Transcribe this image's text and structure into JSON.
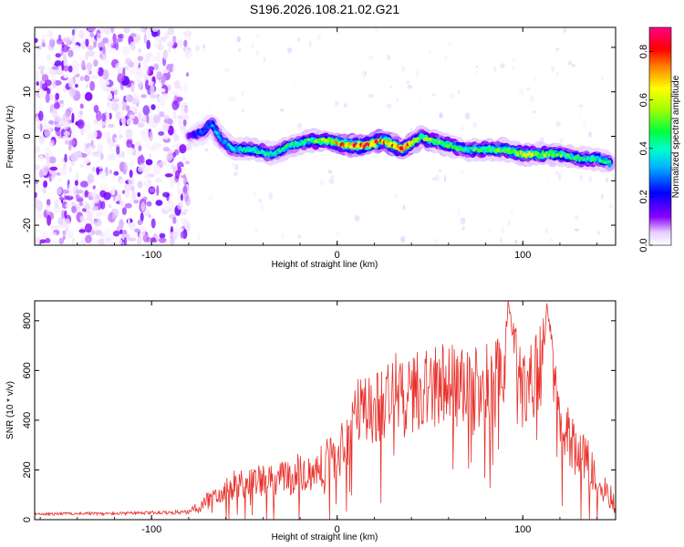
{
  "title": "S196.2026.108.21.02.G21",
  "chart_data": [
    {
      "type": "heatmap",
      "xlabel": "Height of straight line (km)",
      "ylabel": "Frequency (Hz)",
      "xlim": [
        -163,
        150
      ],
      "ylim": [
        -24.5,
        24.5
      ],
      "xticks": [
        -100,
        0,
        100
      ],
      "yticks": [
        -20,
        -10,
        0,
        10,
        20
      ],
      "colorbar": {
        "label": "Normalized spectral amplitude",
        "range": [
          0.0,
          0.9
        ],
        "ticks": [
          0.0,
          0.2,
          0.4,
          0.6,
          0.8
        ],
        "tick_labels": [
          "0.0",
          "0.2",
          "0.4",
          "0.6",
          "0.8"
        ]
      },
      "ridge": {
        "x": [
          -80,
          -72,
          -68,
          -62,
          -55,
          -45,
          -35,
          -25,
          -15,
          -5,
          5,
          15,
          25,
          35,
          42,
          45,
          50,
          60,
          70,
          80,
          90,
          100,
          110,
          120,
          130,
          140,
          147
        ],
        "freq": [
          0,
          1,
          3,
          -1,
          -3,
          -3,
          -4,
          -2,
          -1,
          -1,
          -2,
          -2,
          -1,
          -3,
          -1,
          0,
          -1,
          -2,
          -3,
          -3,
          -3,
          -4,
          -4,
          -4,
          -5,
          -5,
          -6
        ],
        "peak_amplitude": [
          0.15,
          0.3,
          0.35,
          0.35,
          0.4,
          0.45,
          0.4,
          0.45,
          0.5,
          0.6,
          0.8,
          0.85,
          0.7,
          0.85,
          0.6,
          0.5,
          0.55,
          0.5,
          0.45,
          0.5,
          0.55,
          0.6,
          0.55,
          0.5,
          0.45,
          0.45,
          0.4
        ]
      },
      "noise_region_x": [
        -163,
        -80
      ]
    },
    {
      "type": "line",
      "xlabel": "Height of straight line (km)",
      "ylabel": "SNR (10 * v/v)",
      "xlim": [
        -163,
        150
      ],
      "ylim": [
        0,
        880
      ],
      "xticks": [
        -100,
        0,
        100
      ],
      "yticks": [
        0,
        200,
        400,
        600,
        800
      ],
      "series": [
        {
          "name": "SNR",
          "color": "#e8302a",
          "x": [
            -163,
            -140,
            -120,
            -100,
            -80,
            -72,
            -65,
            -55,
            -45,
            -35,
            -25,
            -15,
            -5,
            0,
            5,
            10,
            20,
            30,
            40,
            50,
            60,
            70,
            80,
            90,
            92,
            100,
            110,
            113,
            120,
            130,
            140,
            150
          ],
          "y": [
            22,
            25,
            24,
            28,
            30,
            60,
            110,
            140,
            160,
            150,
            175,
            200,
            240,
            260,
            330,
            420,
            450,
            500,
            520,
            530,
            560,
            500,
            540,
            560,
            880,
            520,
            620,
            870,
            420,
            280,
            170,
            60
          ],
          "spike_variability": [
            5,
            6,
            6,
            7,
            8,
            40,
            50,
            60,
            70,
            70,
            80,
            90,
            100,
            110,
            140,
            150,
            160,
            170,
            170,
            170,
            170,
            180,
            180,
            180,
            0,
            170,
            170,
            0,
            150,
            120,
            80,
            40
          ]
        }
      ]
    }
  ]
}
